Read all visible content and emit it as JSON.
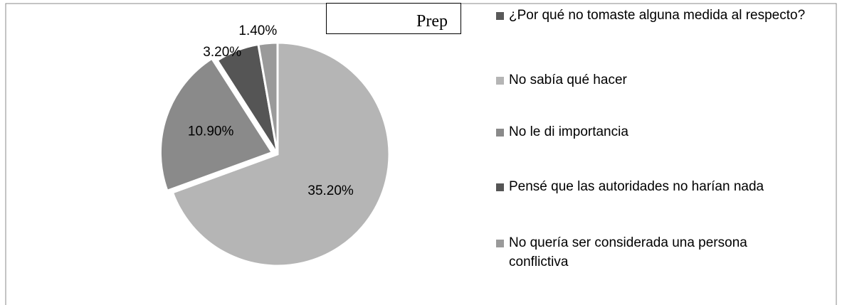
{
  "chart_data": {
    "type": "pie",
    "title": "Prep",
    "categories": [
      "¿Por qué no tomaste alguna medida al respecto?",
      "No sabía qué hacer",
      "No le di importancia",
      "Pensé que las autoridades no harían nada",
      "No quería ser considerada una persona conflictiva"
    ],
    "values": [
      null,
      35.2,
      10.9,
      3.2,
      1.4
    ],
    "value_labels": [
      null,
      "35.20%",
      "10.90%",
      "3.20%",
      "1.40%"
    ],
    "colors": [
      "#595959",
      "#b5b5b5",
      "#8a8a8a",
      "#555555",
      "#9a9a9a"
    ],
    "legend": "right"
  }
}
